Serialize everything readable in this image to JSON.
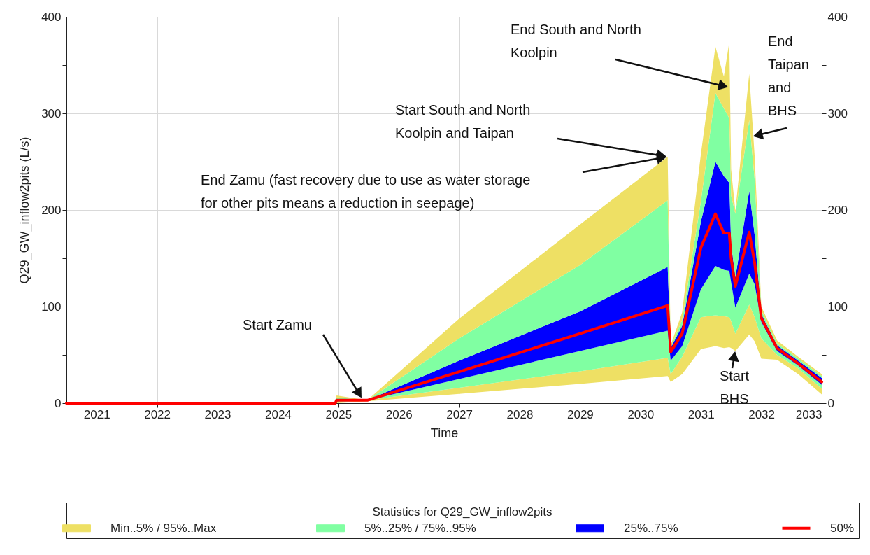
{
  "chart_data": {
    "type": "area",
    "stacked": true,
    "xlabel": "Time",
    "ylabel": "Q29_GW_inflow2pits (L/s)",
    "legend_title": "Statistics for Q29_GW_inflow2pits",
    "legend": "bottom",
    "grid": true,
    "x": [
      2020.5,
      2024.95,
      2024.97,
      2025.48,
      2027,
      2029,
      2030.45,
      2030.5,
      2030.69,
      2031,
      2031.24,
      2031.38,
      2031.47,
      2031.5,
      2031.57,
      2031.8,
      2031.89,
      2032,
      2032.26,
      2032.61,
      2033
    ],
    "xlim": [
      2020.5,
      2033
    ],
    "xticks": [
      2021,
      2022,
      2023,
      2024,
      2025,
      2026,
      2027,
      2028,
      2029,
      2030,
      2031,
      2032,
      2033
    ],
    "ylim": [
      0,
      400
    ],
    "yticks": [
      0,
      {
        "value": 50,
        "label": null
      },
      100,
      {
        "value": 150,
        "label": null
      },
      200,
      {
        "value": 250,
        "label": null
      },
      300,
      {
        "value": 350,
        "label": null
      },
      400
    ],
    "y2lim": [
      0,
      400
    ],
    "y2ticks": [
      0,
      {
        "value": 50,
        "label": null
      },
      100,
      {
        "value": 150,
        "label": null
      },
      200,
      {
        "value": 250,
        "label": null
      },
      300,
      {
        "value": 350,
        "label": null
      },
      400
    ],
    "series": [
      {
        "color": "#ffffff",
        "values": [
          0,
          0,
          0,
          2,
          9.6,
          20,
          28,
          22,
          30,
          56,
          59,
          57,
          58,
          57,
          54,
          71,
          64,
          46,
          45,
          30,
          9
        ]
      },
      {
        "name": "Min..5% / 95%..Max",
        "color": "#eee064",
        "values": [
          0,
          0,
          1,
          1,
          6.4,
          13,
          19,
          8,
          18,
          33,
          32,
          33,
          31,
          28,
          18,
          31,
          25,
          21,
          5,
          6,
          6
        ]
      },
      {
        "name": "5%..25% / 75%..95%",
        "color": "#80ffa2",
        "values": [
          0,
          0,
          1,
          0,
          9,
          21,
          28,
          14,
          11,
          29,
          51,
          48,
          48,
          40,
          27,
          32,
          34,
          17,
          4,
          3,
          4
        ]
      },
      {
        "name": "25%..75%",
        "color": "#0000ff",
        "values": [
          0,
          0,
          2,
          0,
          19,
          41,
          66,
          13,
          21,
          70,
          108,
          97,
          91,
          40,
          31,
          86,
          51,
          8,
          6,
          5,
          7
        ]
      },
      {
        "color": "#80ffa2",
        "values": [
          0,
          0,
          2,
          0,
          23,
          48,
          69,
          1,
          6,
          21,
          71,
          70,
          67,
          50,
          66,
          73,
          57,
          4,
          2,
          2,
          2
        ]
      },
      {
        "color": "#eee064",
        "values": [
          0,
          0,
          2,
          0,
          20.5,
          42,
          45,
          2,
          8,
          49,
          48,
          33,
          79,
          27,
          3,
          48,
          24,
          4,
          3,
          2,
          2
        ]
      },
      {
        "name": "50%",
        "type": "line",
        "color": "#ff0000",
        "values": [
          0,
          0,
          3,
          3,
          32.5,
          72,
          101,
          53,
          72,
          161,
          196,
          176,
          176,
          150,
          121,
          177,
          145,
          88,
          57,
          41,
          22
        ]
      }
    ],
    "annotations": [
      "Start Zamu",
      "End Zamu (fast recovery due to use as water storage\nfor other pits means a reduction in seepage)",
      "Start South and North\nKoolpin and Taipan",
      "End South and North\nKoolpin",
      {
        "text": "End\nTaipan\nand\nBHS",
        "x": 2031.84,
        "y": 276
      },
      {
        "text": "Start\nBHS",
        "x": 2031.57,
        "y": 55
      }
    ]
  }
}
